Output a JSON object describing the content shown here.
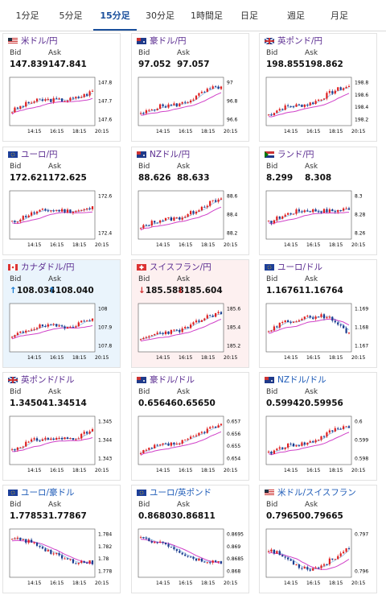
{
  "tabs": [
    "1分足",
    "5分足",
    "15分足",
    "30分足",
    "1時間足",
    "日足",
    "週足",
    "月足"
  ],
  "active_tab": 2,
  "labels": {
    "bid": "Bid",
    "ask": "Ask"
  },
  "x_ticks": [
    "14:15",
    "16:15",
    "18:15",
    "20:15"
  ],
  "pairs": [
    {
      "name": "米ドル/円",
      "bid": "147.839",
      "ask": "147.841",
      "state": "",
      "flag": "us",
      "yticks": [
        "147.8",
        "147.7",
        "147.6"
      ],
      "trend": "up1",
      "seed": 3
    },
    {
      "name": "豪ドル/円",
      "bid": "97.052",
      "ask": "97.057",
      "state": "",
      "flag": "au",
      "yticks": [
        "97",
        "96.8",
        "96.6"
      ],
      "trend": "up2",
      "seed": 5
    },
    {
      "name": "英ポンド/円",
      "bid": "198.855",
      "ask": "198.862",
      "state": "",
      "flag": "gb",
      "yticks": [
        "198.8",
        "198.6",
        "198.4",
        "198.2"
      ],
      "trend": "up2",
      "seed": 7
    },
    {
      "name": "ユーロ/円",
      "bid": "172.621",
      "ask": "172.625",
      "state": "",
      "flag": "eu",
      "yticks": [
        "172.6",
        "172.4"
      ],
      "trend": "up3",
      "seed": 11
    },
    {
      "name": "NZドル/円",
      "bid": "88.626",
      "ask": "88.633",
      "state": "",
      "flag": "nz",
      "yticks": [
        "88.6",
        "88.4",
        "88.2"
      ],
      "trend": "up2",
      "seed": 13
    },
    {
      "name": "ランド/円",
      "bid": "8.299",
      "ask": "8.308",
      "state": "",
      "flag": "za",
      "yticks": [
        "8.3",
        "8.28",
        "8.26"
      ],
      "trend": "up3",
      "seed": 17
    },
    {
      "name": "カナダドル/円",
      "bid": "108.034",
      "ask": "108.040",
      "state": "up",
      "flag": "ca",
      "yticks": [
        "108",
        "107.9",
        "107.8"
      ],
      "trend": "up1",
      "seed": 19
    },
    {
      "name": "スイスフラン/円",
      "bid": "185.588",
      "ask": "185.604",
      "state": "down",
      "flag": "ch",
      "yticks": [
        "185.6",
        "185.4",
        "185.2"
      ],
      "trend": "up2",
      "seed": 23
    },
    {
      "name": "ユーロ/ドル",
      "bid": "1.16761",
      "ask": "1.16764",
      "state": "",
      "flag": "eu",
      "yticks": [
        "1.169",
        "1.168",
        "1.167"
      ],
      "trend": "hump",
      "seed": 29
    },
    {
      "name": "英ポンド/ドル",
      "bid": "1.34504",
      "ask": "1.34514",
      "state": "",
      "flag": "gb",
      "yticks": [
        "1.345",
        "1.344",
        "1.343"
      ],
      "trend": "up1",
      "seed": 31
    },
    {
      "name": "豪ドル/ドル",
      "bid": "0.65646",
      "ask": "0.65650",
      "state": "",
      "flag": "au",
      "yticks": [
        "0.657",
        "0.656",
        "0.655",
        "0.654"
      ],
      "trend": "up2",
      "seed": 37
    },
    {
      "name": "NZドル/ドル",
      "bid": "0.59942",
      "ask": "0.59956",
      "state": "",
      "flag": "nz",
      "yticks": [
        "0.6",
        "0.599",
        "0.598"
      ],
      "trend": "up2",
      "seed": 41
    },
    {
      "name": "ユーロ/豪ドル",
      "bid": "1.77853",
      "ask": "1.77867",
      "state": "",
      "flag": "eu",
      "yticks": [
        "1.784",
        "1.782",
        "1.78",
        "1.778"
      ],
      "trend": "down",
      "seed": 43
    },
    {
      "name": "ユーロ/英ポンド",
      "bid": "0.86803",
      "ask": "0.86811",
      "state": "",
      "flag": "eu",
      "yticks": [
        "0.8695",
        "0.869",
        "0.8685",
        "0.868"
      ],
      "trend": "down",
      "seed": 47
    },
    {
      "name": "米ドル/スイスフラン",
      "bid": "0.79650",
      "ask": "0.79665",
      "state": "",
      "flag": "us",
      "yticks": [
        "0.797",
        "0.796"
      ],
      "trend": "dip",
      "seed": 53
    }
  ],
  "colors": {
    "up": "#e02020",
    "down": "#1c3d8f",
    "ma_blue": "#9ec4e8",
    "ma_pink": "#d040c8",
    "active": "#1a4f9c"
  }
}
